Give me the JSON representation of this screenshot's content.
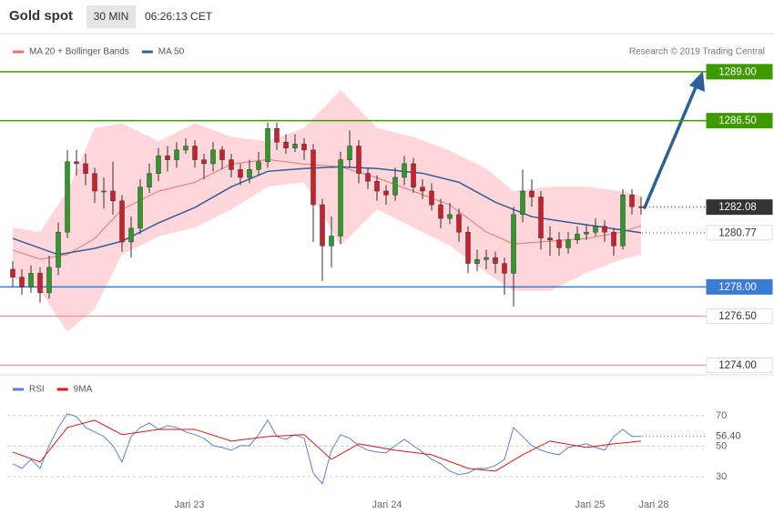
{
  "header": {
    "title": "Gold spot",
    "interval": "30 MIN",
    "time": "06:26:13 CET"
  },
  "credit": "Research © 2019 Trading Central",
  "chart_data": [
    {
      "type": "candlestick",
      "up_color": "#2e9a2e",
      "down_color": "#c8202c",
      "xlim": [
        -0.6,
        75.6
      ],
      "ylim": [
        1273.6,
        1290.9
      ],
      "open": [
        1278.9,
        1278.5,
        1278.0,
        1278.7,
        1277.7,
        1279.0,
        1280.8,
        1284.4,
        1284.3,
        1283.8,
        1282.9,
        1282.9,
        1282.4,
        1280.3,
        1281.0,
        1283.1,
        1283.8,
        1284.7,
        1284.5,
        1285.0,
        1285.2,
        1284.5,
        1284.3,
        1285.0,
        1284.5,
        1284.0,
        1283.6,
        1284.0,
        1284.4,
        1286.1,
        1285.4,
        1285.1,
        1285.3,
        1285.0,
        1282.2,
        1280.1,
        1280.6,
        1284.5,
        1285.2,
        1283.8,
        1283.4,
        1282.9,
        1282.7,
        1283.6,
        1284.3,
        1283.1,
        1282.9,
        1282.2,
        1281.5,
        1281.7,
        1280.8,
        1279.2,
        1279.4,
        1279.5,
        1279.2,
        1278.7,
        1281.7,
        1282.9,
        1282.6,
        1280.5,
        1280.4,
        1280.0,
        1280.4,
        1280.7,
        1280.8,
        1281.1,
        1280.8,
        1280.1,
        1282.7,
        1282.1
      ],
      "high": [
        1279.3,
        1278.9,
        1279.1,
        1279.0,
        1279.6,
        1281.3,
        1285.0,
        1285.0,
        1284.8,
        1284.1,
        1283.6,
        1284.4,
        1282.7,
        1281.6,
        1283.5,
        1284.3,
        1285.1,
        1285.2,
        1285.4,
        1285.6,
        1285.5,
        1284.8,
        1285.4,
        1285.2,
        1284.8,
        1284.3,
        1284.5,
        1284.9,
        1286.4,
        1286.4,
        1285.8,
        1285.8,
        1285.6,
        1285.3,
        1282.5,
        1281.6,
        1284.9,
        1286.0,
        1285.5,
        1284.1,
        1283.7,
        1283.2,
        1284.1,
        1284.7,
        1284.6,
        1283.5,
        1283.3,
        1282.5,
        1282.3,
        1282.0,
        1281.1,
        1279.9,
        1279.9,
        1279.8,
        1279.5,
        1282.1,
        1284.0,
        1283.5,
        1282.9,
        1281.1,
        1280.8,
        1280.8,
        1281.1,
        1281.2,
        1281.5,
        1281.4,
        1281.0,
        1283.0,
        1283.0,
        1282.6
      ],
      "low": [
        1278.0,
        1277.6,
        1277.7,
        1277.2,
        1277.4,
        1278.6,
        1280.5,
        1283.7,
        1283.2,
        1282.3,
        1282.0,
        1281.7,
        1279.8,
        1279.5,
        1280.7,
        1282.8,
        1283.4,
        1283.9,
        1284.1,
        1284.8,
        1284.1,
        1283.5,
        1283.9,
        1284.0,
        1283.6,
        1283.2,
        1283.3,
        1283.7,
        1284.1,
        1285.0,
        1284.8,
        1284.9,
        1284.5,
        1280.3,
        1278.3,
        1279.0,
        1280.2,
        1284.1,
        1283.3,
        1283.0,
        1282.4,
        1282.2,
        1282.4,
        1283.2,
        1282.8,
        1282.5,
        1281.9,
        1281.0,
        1281.2,
        1280.3,
        1278.7,
        1278.8,
        1278.9,
        1278.7,
        1277.6,
        1277.0,
        1281.3,
        1282.1,
        1279.9,
        1279.6,
        1279.6,
        1279.7,
        1280.2,
        1280.4,
        1280.6,
        1280.3,
        1279.6,
        1279.9,
        1281.7,
        1281.7
      ],
      "close": [
        1278.5,
        1278.0,
        1278.7,
        1277.7,
        1279.0,
        1280.8,
        1284.4,
        1284.3,
        1283.8,
        1282.9,
        1282.9,
        1282.4,
        1280.3,
        1281.0,
        1283.1,
        1283.8,
        1284.7,
        1284.5,
        1285.0,
        1285.2,
        1284.5,
        1284.3,
        1285.0,
        1284.5,
        1284.0,
        1283.6,
        1284.0,
        1284.4,
        1286.1,
        1285.4,
        1285.1,
        1285.3,
        1285.0,
        1282.2,
        1280.1,
        1280.6,
        1284.5,
        1285.2,
        1283.8,
        1283.4,
        1282.9,
        1282.7,
        1283.6,
        1284.3,
        1283.1,
        1282.9,
        1282.2,
        1281.5,
        1281.7,
        1280.8,
        1279.2,
        1279.4,
        1279.5,
        1279.2,
        1278.7,
        1281.7,
        1282.9,
        1282.6,
        1280.5,
        1280.4,
        1280.0,
        1280.4,
        1280.7,
        1280.8,
        1281.1,
        1280.8,
        1280.1,
        1282.7,
        1282.1,
        1282.08
      ],
      "series": [
        {
          "name": "MA 20 + Bollinger Bands",
          "color": "#f07070",
          "band_color": "#ffd6d9",
          "x": [
            0,
            3,
            6,
            9,
            12,
            16,
            20,
            24,
            28,
            32,
            36,
            40,
            44,
            48,
            52,
            55,
            59,
            63,
            67,
            69
          ],
          "values": [
            1279.88,
            1279.42,
            1279.65,
            1280.48,
            1281.96,
            1282.89,
            1283.35,
            1284.28,
            1284.51,
            1284.28,
            1284.14,
            1283.58,
            1282.89,
            1282.19,
            1280.81,
            1280.2,
            1280.34,
            1280.48,
            1280.81,
            1281.13
          ],
          "upper": [
            1281.04,
            1280.81,
            1282.89,
            1286.13,
            1286.36,
            1285.44,
            1286.36,
            1285.67,
            1285.44,
            1286.13,
            1288.07,
            1286.13,
            1285.67,
            1284.97,
            1284.05,
            1282.89,
            1283.12,
            1283.12,
            1282.89,
            1282.66
          ],
          "lower": [
            1278.49,
            1277.8,
            1275.71,
            1276.87,
            1279.65,
            1280.57,
            1281.04,
            1281.96,
            1283.12,
            1283.35,
            1280.11,
            1281.96,
            1281.04,
            1280.11,
            1278.72,
            1277.8,
            1277.8,
            1278.72,
            1279.42,
            1279.65
          ]
        },
        {
          "name": "MA 50",
          "color": "#2d5f9a",
          "x": [
            0,
            5,
            9,
            12,
            16,
            20,
            24,
            28,
            32,
            36,
            40,
            45,
            49,
            53,
            57,
            61,
            65,
            69
          ],
          "values": [
            1280.48,
            1279.65,
            1279.97,
            1280.34,
            1281.27,
            1282.06,
            1283.12,
            1283.91,
            1284.05,
            1284.14,
            1284.05,
            1283.81,
            1283.35,
            1282.33,
            1281.59,
            1281.31,
            1281.04,
            1280.77
          ]
        }
      ],
      "levels": [
        {
          "value": 1289.0,
          "label": "1289.00",
          "color": "#3d9a00",
          "style": "filled",
          "line": "solid"
        },
        {
          "value": 1286.5,
          "label": "1286.50",
          "color": "#3d9a00",
          "style": "filled",
          "line": "solid"
        },
        {
          "value": 1282.08,
          "label": "1282.08",
          "color": "#333333",
          "style": "filled",
          "line": "dotted"
        },
        {
          "value": 1280.77,
          "label": "1280.77",
          "color": "#2d5f9a",
          "style": "outline",
          "line": "dotted"
        },
        {
          "value": 1278.0,
          "label": "1278.00",
          "color": "#3a7bd5",
          "style": "filled",
          "line": "solid"
        },
        {
          "value": 1276.5,
          "label": "1276.50",
          "color": "#f08080",
          "style": "outline",
          "line": "solid"
        },
        {
          "value": 1274.0,
          "label": "1274.00",
          "color": "#f08080",
          "style": "outline",
          "line": "solid"
        }
      ]
    },
    {
      "type": "line",
      "xlim": [
        -0.6,
        75.6
      ],
      "ylim": [
        15,
        95
      ],
      "yticks": [
        70,
        50,
        30
      ],
      "grid": true,
      "xticks": [
        {
          "value": 19.4,
          "label": "Jan 23"
        },
        {
          "value": 41.1,
          "label": "Jan 24"
        },
        {
          "value": 63.4,
          "label": "Jan 25"
        },
        {
          "value": 70.4,
          "label": "Jan 28"
        }
      ],
      "current": {
        "value": 56.4,
        "label": "56.40"
      },
      "series": [
        {
          "name": "RSI",
          "color": "#5b7fe0",
          "x": [
            0,
            1,
            2,
            3,
            4,
            5,
            6,
            7,
            8,
            9,
            10,
            11,
            12,
            13,
            14,
            15,
            16,
            17,
            18,
            19,
            20,
            21,
            22,
            23,
            24,
            25,
            26,
            27,
            28,
            29,
            30,
            31,
            32,
            33,
            34,
            35,
            36,
            37,
            38,
            39,
            40,
            41,
            42,
            43,
            44,
            45,
            46,
            47,
            48,
            49,
            50,
            51,
            52,
            53,
            54,
            55,
            56,
            57,
            58,
            59,
            60,
            61,
            62,
            63,
            64,
            65,
            66,
            67,
            68,
            69
          ],
          "values": [
            38.4,
            35.4,
            41.3,
            35.4,
            50.3,
            62.2,
            71.2,
            69.4,
            62.2,
            59.3,
            56.3,
            50.3,
            39.6,
            56.3,
            62.2,
            65.2,
            61.0,
            63.4,
            62.2,
            59.3,
            57.5,
            55.1,
            50.3,
            49.1,
            47.3,
            50.3,
            50.3,
            57.5,
            67.0,
            56.3,
            54.5,
            57.5,
            55.1,
            32.4,
            25.2,
            47.3,
            57.5,
            55.1,
            50.3,
            47.3,
            46.1,
            45.5,
            50.3,
            54.5,
            50.3,
            46.1,
            41.3,
            38.4,
            33.6,
            31.2,
            32.4,
            35.4,
            35.4,
            37.2,
            41.3,
            62.2,
            56.3,
            50.3,
            47.3,
            45.5,
            44.3,
            49.1,
            50.3,
            51.5,
            49.1,
            47.3,
            56.3,
            61.0,
            56.3,
            56.4
          ]
        },
        {
          "name": "9MA",
          "color": "#e81010",
          "x": [
            0,
            3,
            6,
            9,
            12,
            16,
            20,
            24,
            28,
            32,
            35,
            38,
            42,
            46,
            50,
            53,
            56,
            59,
            63,
            66,
            69
          ],
          "values": [
            46.1,
            39.6,
            62.2,
            67.0,
            57.5,
            61.0,
            61.0,
            53.3,
            56.3,
            57.5,
            41.3,
            51.5,
            47.3,
            44.3,
            35.4,
            33.6,
            44.3,
            53.3,
            49.1,
            51.5,
            53.3
          ]
        }
      ]
    }
  ]
}
